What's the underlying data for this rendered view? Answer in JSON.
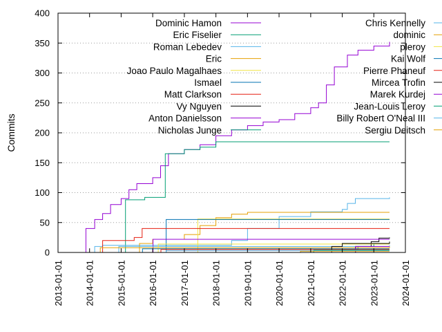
{
  "chart_data": {
    "type": "line",
    "title": "",
    "xlabel": "",
    "ylabel": "Commits",
    "xlim": [
      "2013-01-01",
      "2024-01-01"
    ],
    "ylim": [
      0,
      400
    ],
    "yticks": [
      0,
      50,
      100,
      150,
      200,
      250,
      300,
      350,
      400
    ],
    "xticks": [
      "2013-01-01",
      "2014-01-01",
      "2015-01-01",
      "2016-01-01",
      "2017-01-01",
      "2018-01-01",
      "2019-01-01",
      "2020-01-01",
      "2021-01-01",
      "2022-01-01",
      "2023-01-01",
      "2024-01-01"
    ],
    "grid": {
      "y": true,
      "x": false
    },
    "legend_placement": "top, two columns",
    "series": [
      {
        "name": "Dominic Hamon",
        "color": "#9400d3",
        "points": [
          [
            "2013-11-10",
            0
          ],
          [
            "2013-11-20",
            40
          ],
          [
            "2014-03-01",
            55
          ],
          [
            "2014-06-01",
            65
          ],
          [
            "2014-09-01",
            80
          ],
          [
            "2015-01-01",
            90
          ],
          [
            "2015-04-01",
            105
          ],
          [
            "2015-07-01",
            115
          ],
          [
            "2016-01-01",
            125
          ],
          [
            "2016-04-01",
            145
          ],
          [
            "2016-07-01",
            165
          ],
          [
            "2017-01-01",
            172
          ],
          [
            "2017-07-01",
            180
          ],
          [
            "2018-01-01",
            195
          ],
          [
            "2018-07-01",
            205
          ],
          [
            "2019-01-01",
            212
          ],
          [
            "2019-07-01",
            218
          ],
          [
            "2020-01-01",
            222
          ],
          [
            "2020-07-01",
            232
          ],
          [
            "2021-01-01",
            242
          ],
          [
            "2021-04-01",
            250
          ],
          [
            "2021-07-01",
            280
          ],
          [
            "2021-10-01",
            310
          ],
          [
            "2022-03-01",
            330
          ],
          [
            "2022-07-01",
            338
          ],
          [
            "2023-01-01",
            345
          ],
          [
            "2023-07-01",
            352
          ]
        ]
      },
      {
        "name": "Eric Fiselier",
        "color": "#009e73",
        "points": [
          [
            "2015-02-15",
            0
          ],
          [
            "2015-02-20",
            88
          ],
          [
            "2015-10-01",
            92
          ],
          [
            "2016-05-20",
            92
          ],
          [
            "2016-05-25",
            165
          ],
          [
            "2017-01-01",
            172
          ],
          [
            "2017-07-01",
            176
          ],
          [
            "2018-01-01",
            185
          ],
          [
            "2023-07-01",
            185
          ]
        ]
      },
      {
        "name": "Roman Lebedev",
        "color": "#56b4e9",
        "points": [
          [
            "2014-02-15",
            0
          ],
          [
            "2014-03-01",
            10
          ],
          [
            "2014-06-01",
            12
          ],
          [
            "2017-01-01",
            12
          ],
          [
            "2018-07-01",
            20
          ],
          [
            "2019-01-01",
            40
          ],
          [
            "2020-01-01",
            60
          ],
          [
            "2021-01-01",
            68
          ],
          [
            "2022-01-01",
            72
          ],
          [
            "2022-03-01",
            82
          ],
          [
            "2022-06-01",
            90
          ],
          [
            "2023-07-01",
            92
          ]
        ]
      },
      {
        "name": "Eric",
        "color": "#e69f00",
        "points": [
          [
            "2015-07-01",
            0
          ],
          [
            "2015-08-01",
            15
          ],
          [
            "2016-01-01",
            22
          ],
          [
            "2017-01-01",
            30
          ],
          [
            "2017-07-01",
            45
          ],
          [
            "2018-01-01",
            58
          ],
          [
            "2018-07-01",
            64
          ],
          [
            "2019-01-01",
            67
          ],
          [
            "2023-07-01",
            67
          ]
        ]
      },
      {
        "name": "Joao Paulo Magalhaes",
        "color": "#f0e442",
        "points": [
          [
            "2017-06-01",
            0
          ],
          [
            "2017-06-05",
            56
          ],
          [
            "2023-07-01",
            56
          ]
        ]
      },
      {
        "name": "Ismael",
        "color": "#0072b2",
        "points": [
          [
            "2016-06-01",
            0
          ],
          [
            "2016-06-05",
            55
          ],
          [
            "2023-07-01",
            55
          ]
        ]
      },
      {
        "name": "Matt Clarkson",
        "color": "#e51e10",
        "points": [
          [
            "2014-05-01",
            0
          ],
          [
            "2014-06-01",
            20
          ],
          [
            "2015-06-01",
            25
          ],
          [
            "2015-09-01",
            40
          ],
          [
            "2023-07-01",
            40
          ]
        ]
      },
      {
        "name": "Vy Nguyen",
        "color": "#000000",
        "points": [
          [
            "2021-06-01",
            0
          ],
          [
            "2022-06-01",
            10
          ],
          [
            "2022-12-01",
            18
          ],
          [
            "2023-03-01",
            24
          ],
          [
            "2023-07-01",
            25
          ]
        ]
      },
      {
        "name": "Anton Danielsson",
        "color": "#9400d3",
        "points": [
          [
            "2016-01-01",
            0
          ],
          [
            "2016-01-05",
            22
          ],
          [
            "2023-07-01",
            22
          ]
        ]
      },
      {
        "name": "Nicholas Junge",
        "color": "#009e73",
        "points": [
          [
            "2021-01-01",
            0
          ],
          [
            "2022-01-01",
            5
          ],
          [
            "2022-07-01",
            10
          ],
          [
            "2023-01-01",
            15
          ],
          [
            "2023-07-01",
            18
          ]
        ]
      },
      {
        "name": "Chris Kennelly",
        "color": "#56b4e9",
        "points": [
          [
            "2014-12-01",
            0
          ],
          [
            "2014-12-05",
            10
          ],
          [
            "2023-07-01",
            12
          ]
        ]
      },
      {
        "name": "dominic",
        "color": "#e69f00",
        "points": [
          [
            "2014-05-01",
            0
          ],
          [
            "2014-05-05",
            8
          ],
          [
            "2023-07-01",
            10
          ]
        ]
      },
      {
        "name": "pleroy",
        "color": "#f0e442",
        "points": [
          [
            "2016-03-01",
            0
          ],
          [
            "2016-03-05",
            14
          ],
          [
            "2023-07-01",
            14
          ]
        ]
      },
      {
        "name": "Kai Wolf",
        "color": "#0072b2",
        "points": [
          [
            "2015-09-01",
            0
          ],
          [
            "2015-09-05",
            6
          ],
          [
            "2023-07-01",
            6
          ]
        ]
      },
      {
        "name": "Pierre Phaneuf",
        "color": "#e51e10",
        "points": [
          [
            "2016-04-01",
            0
          ],
          [
            "2016-04-05",
            5
          ],
          [
            "2023-07-01",
            5
          ]
        ]
      },
      {
        "name": "Mircea Trofin",
        "color": "#000000",
        "points": [
          [
            "2021-06-01",
            0
          ],
          [
            "2021-09-01",
            10
          ],
          [
            "2022-01-01",
            15
          ],
          [
            "2023-07-01",
            18
          ]
        ]
      },
      {
        "name": "Marek Kurdej",
        "color": "#9400d3",
        "points": [
          [
            "2022-06-01",
            0
          ],
          [
            "2022-06-05",
            10
          ],
          [
            "2023-07-01",
            10
          ]
        ]
      },
      {
        "name": "Jean-Louis Leroy",
        "color": "#009e73",
        "points": [
          [
            "2021-02-01",
            0
          ],
          [
            "2021-02-05",
            4
          ],
          [
            "2023-07-01",
            4
          ]
        ]
      },
      {
        "name": "Billy Robert O'Neal III",
        "color": "#56b4e9",
        "points": [
          [
            "2016-06-01",
            0
          ],
          [
            "2016-06-05",
            3
          ],
          [
            "2023-07-01",
            3
          ]
        ]
      },
      {
        "name": "Sergiu Deitsch",
        "color": "#e69f00",
        "points": [
          [
            "2020-09-01",
            0
          ],
          [
            "2020-09-05",
            2
          ],
          [
            "2023-07-01",
            2
          ]
        ]
      }
    ]
  }
}
